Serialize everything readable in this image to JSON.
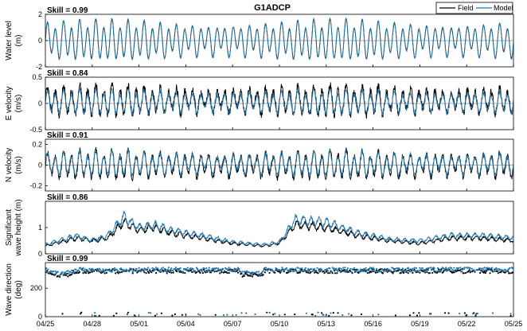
{
  "figure": {
    "title": "G1ADCP",
    "legend": [
      {
        "name": "Field",
        "color": "#000000"
      },
      {
        "name": "Model",
        "color": "#1f77b4"
      }
    ],
    "legend_placement": "top-right",
    "x_ticks": [
      "04/25",
      "04/28",
      "05/01",
      "05/04",
      "05/07",
      "05/10",
      "05/13",
      "05/16",
      "05/19",
      "05/22",
      "05/25"
    ]
  },
  "chart_data": [
    {
      "type": "line",
      "ylabel_lines": [
        "Water level",
        "(m)"
      ],
      "skill": "Skill = 0.99",
      "ylim": [
        -2,
        2
      ],
      "yticks": [
        -2,
        0,
        2
      ],
      "zero_line": true,
      "xlim": [
        0,
        30
      ],
      "series": [
        {
          "name": "Field",
          "color": "#000000",
          "mean": 0,
          "semidiurnal_amp": 1.3,
          "diurnal_amp": 0.35,
          "noise": 0.05
        },
        {
          "name": "Model",
          "color": "#1f77b4",
          "mean": 0,
          "semidiurnal_amp": 1.35,
          "diurnal_amp": 0.35,
          "noise": 0.03
        }
      ]
    },
    {
      "type": "line",
      "ylabel_lines": [
        "E velocity",
        "(m/s)"
      ],
      "skill": "Skill = 0.84",
      "ylim": [
        -0.5,
        0.5
      ],
      "yticks": [
        -0.5,
        0,
        0.5
      ],
      "zero_line": true,
      "xlim": [
        0,
        30
      ],
      "series": [
        {
          "name": "Field",
          "color": "#000000",
          "mean": 0.05,
          "semidiurnal_amp": 0.25,
          "diurnal_amp": 0.06,
          "noise": 0.08
        },
        {
          "name": "Model",
          "color": "#1f77b4",
          "mean": 0.02,
          "semidiurnal_amp": 0.2,
          "diurnal_amp": 0.05,
          "noise": 0.04
        }
      ]
    },
    {
      "type": "line",
      "ylabel_lines": [
        "N velocity",
        "(m/s)"
      ],
      "skill": "Skill = 0.91",
      "ylim": [
        -0.25,
        0.25
      ],
      "yticks": [
        -0.2,
        0,
        0.2
      ],
      "zero_line": true,
      "xlim": [
        0,
        30
      ],
      "series": [
        {
          "name": "Field",
          "color": "#000000",
          "mean": 0.0,
          "semidiurnal_amp": 0.12,
          "diurnal_amp": 0.03,
          "noise": 0.03
        },
        {
          "name": "Model",
          "color": "#1f77b4",
          "mean": 0.01,
          "semidiurnal_amp": 0.1,
          "diurnal_amp": 0.03,
          "noise": 0.02
        }
      ]
    },
    {
      "type": "line",
      "ylabel_lines": [
        "Significant",
        "wave height (m)"
      ],
      "skill": "Skill = 0.86",
      "ylim": [
        0,
        2
      ],
      "yticks": [
        0,
        1
      ],
      "zero_line": false,
      "xlim": [
        0,
        30
      ],
      "series": [
        {
          "name": "Field",
          "color": "#000000",
          "envelope_x": [
            0,
            2,
            3,
            4,
            5,
            6,
            7,
            8,
            10,
            12,
            14,
            15,
            16,
            18,
            20,
            22,
            24,
            26,
            28,
            30
          ],
          "envelope_y": [
            0.3,
            0.6,
            0.5,
            0.6,
            1.2,
            0.9,
            1.0,
            0.8,
            0.6,
            0.4,
            0.3,
            0.4,
            1.1,
            1.0,
            0.7,
            0.5,
            0.4,
            0.6,
            0.6,
            0.5
          ]
        },
        {
          "name": "Model",
          "color": "#1f77b4",
          "envelope_x": [
            0,
            2,
            3,
            4,
            5,
            6,
            7,
            8,
            10,
            12,
            14,
            15,
            16,
            18,
            20,
            22,
            24,
            26,
            28,
            30
          ],
          "envelope_y": [
            0.35,
            0.7,
            0.5,
            0.7,
            1.4,
            1.0,
            1.1,
            0.9,
            0.7,
            0.45,
            0.35,
            0.45,
            1.3,
            1.2,
            0.8,
            0.55,
            0.5,
            0.7,
            0.7,
            0.6
          ]
        }
      ]
    },
    {
      "type": "scatter",
      "ylabel_lines": [
        "Wave direction",
        "(deg)"
      ],
      "skill": "Skill = 0.99",
      "ylim": [
        0,
        380
      ],
      "yticks": [
        0,
        200
      ],
      "zero_line": false,
      "xlim": [
        0,
        30
      ],
      "series": [
        {
          "name": "Field",
          "color": "#000000",
          "main_level": 330
        },
        {
          "name": "Model",
          "color": "#1f77b4",
          "main_level": 340
        }
      ]
    }
  ]
}
